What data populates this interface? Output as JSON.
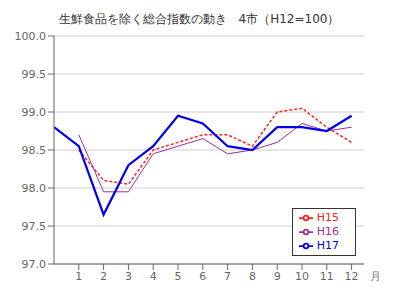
{
  "chart_data": {
    "type": "line",
    "title": "生鮮食品を除く総合指数の動き　4市（H12=100）",
    "xlabel": "月",
    "x": [
      0,
      1,
      2,
      3,
      4,
      5,
      6,
      7,
      8,
      9,
      10,
      11,
      12
    ],
    "series": [
      {
        "name": "H15",
        "color": "#ff2222",
        "line_style": "dotted",
        "values": [
          null,
          98.5,
          98.1,
          98.05,
          98.5,
          98.6,
          98.7,
          98.7,
          98.55,
          99.0,
          99.05,
          98.8,
          98.6
        ]
      },
      {
        "name": "H16",
        "color": "#993399",
        "line_style": "solid",
        "values": [
          null,
          98.7,
          97.95,
          97.95,
          98.45,
          98.55,
          98.65,
          98.45,
          98.5,
          98.6,
          98.85,
          98.75,
          98.8
        ]
      },
      {
        "name": "H17",
        "color": "#0000ee",
        "line_style": "solid",
        "values": [
          98.8,
          98.55,
          97.65,
          98.3,
          98.55,
          98.95,
          98.85,
          98.55,
          98.5,
          98.8,
          98.8,
          98.75,
          98.95
        ]
      }
    ],
    "xlim": [
      0.0,
      12.5
    ],
    "xticks": [
      1,
      2,
      3,
      4,
      5,
      6,
      7,
      8,
      9,
      10,
      11,
      12
    ],
    "ylim": [
      97.0,
      100.0
    ],
    "yticks": [
      {
        "value": 97,
        "label": "97.0"
      },
      97.5,
      {
        "value": 98,
        "label": "98.0"
      },
      98.5,
      {
        "value": 99,
        "label": "99.0"
      },
      99.5,
      {
        "value": 100,
        "label": "100.0"
      }
    ],
    "grid": "y",
    "legend": "lower right"
  }
}
